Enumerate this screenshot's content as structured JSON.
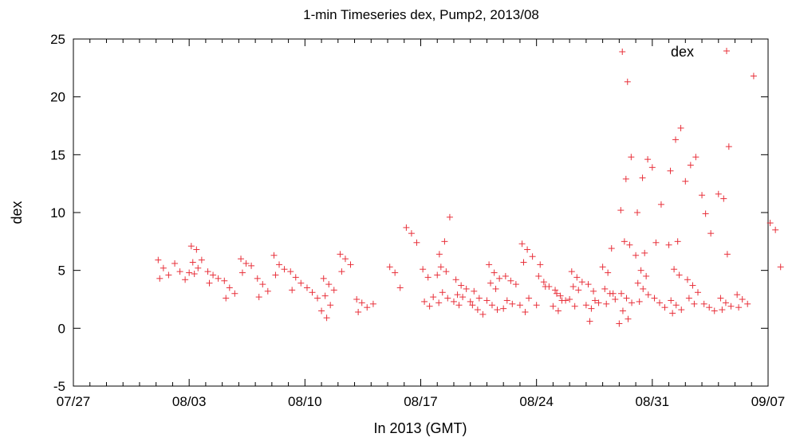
{
  "chart_data": {
    "type": "scatter",
    "title": "1-min Timeseries dex, Pump2, 2013/08",
    "xlabel": "In 2013 (GMT)",
    "ylabel": "dex",
    "x_ticks": [
      "07/27",
      "08/03",
      "08/10",
      "08/17",
      "08/24",
      "08/31",
      "09/07"
    ],
    "xlim": [
      "2013-07-27",
      "2013-09-07"
    ],
    "y_ticks": [
      "25",
      "20",
      "15",
      "10",
      "5",
      "0",
      "-5"
    ],
    "ylim": [
      -5,
      25
    ],
    "grid": false,
    "legend_position": "top-right",
    "series": [
      {
        "name": "dex",
        "marker": "plus",
        "color": "#e8303a",
        "points": [
          [
            "2013-08-01",
            5.9
          ],
          [
            "2013-08-01",
            5.2
          ],
          [
            "2013-08-01",
            4.6
          ],
          [
            "2013-08-01",
            4.3
          ],
          [
            "2013-08-02",
            5.6
          ],
          [
            "2013-08-02",
            4.9
          ],
          [
            "2013-08-02",
            4.2
          ],
          [
            "2013-08-03",
            7.1
          ],
          [
            "2013-08-03",
            6.8
          ],
          [
            "2013-08-03",
            5.9
          ],
          [
            "2013-08-03",
            5.7
          ],
          [
            "2013-08-03",
            5.2
          ],
          [
            "2013-08-03",
            4.8
          ],
          [
            "2013-08-03",
            4.7
          ],
          [
            "2013-08-04",
            4.9
          ],
          [
            "2013-08-04",
            4.6
          ],
          [
            "2013-08-04",
            4.3
          ],
          [
            "2013-08-04",
            3.9
          ],
          [
            "2013-08-05",
            4.1
          ],
          [
            "2013-08-05",
            3.5
          ],
          [
            "2013-08-05",
            3.0
          ],
          [
            "2013-08-05",
            2.6
          ],
          [
            "2013-08-06",
            6.0
          ],
          [
            "2013-08-06",
            5.6
          ],
          [
            "2013-08-06",
            5.4
          ],
          [
            "2013-08-06",
            4.8
          ],
          [
            "2013-08-07",
            4.3
          ],
          [
            "2013-08-07",
            3.8
          ],
          [
            "2013-08-07",
            3.2
          ],
          [
            "2013-08-07",
            2.7
          ],
          [
            "2013-08-08",
            6.3
          ],
          [
            "2013-08-08",
            5.5
          ],
          [
            "2013-08-08",
            5.1
          ],
          [
            "2013-08-08",
            4.6
          ],
          [
            "2013-08-09",
            4.9
          ],
          [
            "2013-08-09",
            4.4
          ],
          [
            "2013-08-09",
            3.9
          ],
          [
            "2013-08-09",
            3.3
          ],
          [
            "2013-08-10",
            3.5
          ],
          [
            "2013-08-10",
            3.1
          ],
          [
            "2013-08-10",
            2.6
          ],
          [
            "2013-08-11",
            4.3
          ],
          [
            "2013-08-11",
            3.8
          ],
          [
            "2013-08-11",
            3.3
          ],
          [
            "2013-08-11",
            2.8
          ],
          [
            "2013-08-11",
            2.0
          ],
          [
            "2013-08-11",
            1.5
          ],
          [
            "2013-08-11",
            0.9
          ],
          [
            "2013-08-12",
            6.4
          ],
          [
            "2013-08-12",
            6.0
          ],
          [
            "2013-08-12",
            5.5
          ],
          [
            "2013-08-12",
            4.9
          ],
          [
            "2013-08-13",
            2.5
          ],
          [
            "2013-08-13",
            2.2
          ],
          [
            "2013-08-13",
            1.8
          ],
          [
            "2013-08-13",
            1.4
          ],
          [
            "2013-08-14",
            2.1
          ],
          [
            "2013-08-15",
            5.3
          ],
          [
            "2013-08-15",
            4.8
          ],
          [
            "2013-08-15",
            3.5
          ],
          [
            "2013-08-16",
            8.7
          ],
          [
            "2013-08-16",
            8.2
          ],
          [
            "2013-08-16",
            7.4
          ],
          [
            "2013-08-17",
            5.1
          ],
          [
            "2013-08-17",
            4.4
          ],
          [
            "2013-08-18",
            6.4
          ],
          [
            "2013-08-18",
            7.5
          ],
          [
            "2013-08-18",
            9.6
          ],
          [
            "2013-08-18",
            5.3
          ],
          [
            "2013-08-18",
            4.9
          ],
          [
            "2013-08-18",
            4.6
          ],
          [
            "2013-08-19",
            4.2
          ],
          [
            "2013-08-19",
            3.7
          ],
          [
            "2013-08-19",
            3.4
          ],
          [
            "2013-08-19",
            2.9
          ],
          [
            "2013-08-20",
            2.0
          ],
          [
            "2013-08-20",
            1.6
          ],
          [
            "2013-08-20",
            1.2
          ],
          [
            "2013-08-21",
            5.5
          ],
          [
            "2013-08-21",
            4.8
          ],
          [
            "2013-08-21",
            4.3
          ],
          [
            "2013-08-21",
            3.9
          ],
          [
            "2013-08-21",
            3.4
          ],
          [
            "2013-08-22",
            4.5
          ],
          [
            "2013-08-22",
            4.1
          ],
          [
            "2013-08-22",
            3.8
          ],
          [
            "2013-08-23",
            7.3
          ],
          [
            "2013-08-23",
            6.8
          ],
          [
            "2013-08-23",
            6.2
          ],
          [
            "2013-08-23",
            5.7
          ],
          [
            "2013-08-24",
            4.5
          ],
          [
            "2013-08-24",
            4.0
          ],
          [
            "2013-08-24",
            3.6
          ],
          [
            "2013-08-25",
            3.3
          ],
          [
            "2013-08-25",
            2.8
          ],
          [
            "2013-08-25",
            2.4
          ],
          [
            "2013-08-26",
            4.9
          ],
          [
            "2013-08-26",
            4.4
          ],
          [
            "2013-08-26",
            4.0
          ],
          [
            "2013-08-26",
            3.6
          ],
          [
            "2013-08-27",
            3.8
          ],
          [
            "2013-08-27",
            3.2
          ],
          [
            "2013-08-27",
            2.2
          ],
          [
            "2013-08-27",
            0.6
          ],
          [
            "2013-08-28",
            3.4
          ],
          [
            "2013-08-28",
            3.0
          ],
          [
            "2013-08-28",
            2.5
          ],
          [
            "2013-08-28",
            2.1
          ],
          [
            "2013-08-29",
            3.0
          ],
          [
            "2013-08-29",
            2.6
          ],
          [
            "2013-08-29",
            2.2
          ],
          [
            "2013-08-29",
            1.5
          ],
          [
            "2013-08-29",
            0.8
          ],
          [
            "2013-08-29",
            0.4
          ],
          [
            "2013-08-30",
            3.9
          ],
          [
            "2013-08-30",
            3.4
          ],
          [
            "2013-08-30",
            2.9
          ],
          [
            "2013-08-30",
            2.3
          ],
          [
            "2013-08-31",
            2.6
          ],
          [
            "2013-08-31",
            2.2
          ],
          [
            "2013-08-31",
            1.8
          ],
          [
            "2013-09-01",
            2.4
          ],
          [
            "2013-09-01",
            2.0
          ],
          [
            "2013-09-01",
            1.6
          ],
          [
            "2013-09-01",
            1.3
          ],
          [
            "2013-09-02",
            4.2
          ],
          [
            "2013-09-02",
            3.7
          ],
          [
            "2013-09-02",
            3.1
          ],
          [
            "2013-09-02",
            2.6
          ],
          [
            "2013-09-02",
            2.1
          ],
          [
            "2013-09-03",
            2.1
          ],
          [
            "2013-09-03",
            1.8
          ],
          [
            "2013-09-03",
            1.5
          ],
          [
            "2013-09-04",
            2.6
          ],
          [
            "2013-09-04",
            2.2
          ],
          [
            "2013-09-04",
            1.9
          ],
          [
            "2013-09-04",
            1.6
          ],
          [
            "2013-09-05",
            2.9
          ],
          [
            "2013-09-05",
            2.5
          ],
          [
            "2013-09-05",
            2.1
          ],
          [
            "2013-09-05",
            1.8
          ],
          [
            "2013-08-17",
            2.7
          ],
          [
            "2013-08-17",
            2.3
          ],
          [
            "2013-08-17",
            1.9
          ],
          [
            "2013-08-18",
            3.1
          ],
          [
            "2013-08-18",
            2.6
          ],
          [
            "2013-08-18",
            2.2
          ],
          [
            "2013-08-19",
            2.7
          ],
          [
            "2013-08-19",
            2.3
          ],
          [
            "2013-08-19",
            2.0
          ],
          [
            "2013-08-20",
            3.2
          ],
          [
            "2013-08-20",
            2.6
          ],
          [
            "2013-08-20",
            2.3
          ],
          [
            "2013-08-21",
            2.4
          ],
          [
            "2013-08-21",
            2.0
          ],
          [
            "2013-08-21",
            1.6
          ],
          [
            "2013-08-22",
            2.4
          ],
          [
            "2013-08-22",
            2.1
          ],
          [
            "2013-08-22",
            1.7
          ],
          [
            "2013-08-23",
            2.6
          ],
          [
            "2013-08-23",
            2.0
          ],
          [
            "2013-08-23",
            1.4
          ],
          [
            "2013-08-24",
            5.5
          ],
          [
            "2013-08-24",
            3.6
          ],
          [
            "2013-08-24",
            2.0
          ],
          [
            "2013-08-25",
            3.0
          ],
          [
            "2013-08-25",
            2.4
          ],
          [
            "2013-08-25",
            1.9
          ],
          [
            "2013-08-25",
            1.5
          ],
          [
            "2013-08-26",
            3.3
          ],
          [
            "2013-08-26",
            2.5
          ],
          [
            "2013-08-26",
            1.9
          ],
          [
            "2013-08-27",
            2.4
          ],
          [
            "2013-08-27",
            2.0
          ],
          [
            "2013-08-27",
            1.7
          ],
          [
            "2013-08-28",
            6.9
          ],
          [
            "2013-08-28",
            5.3
          ],
          [
            "2013-08-28",
            4.8
          ],
          [
            "2013-08-28",
            3.0
          ],
          [
            "2013-08-29",
            7.5
          ],
          [
            "2013-08-29",
            7.2
          ],
          [
            "2013-08-29",
            10.2
          ],
          [
            "2013-08-29",
            12.9
          ],
          [
            "2013-08-29",
            14.8
          ],
          [
            "2013-08-29",
            23.9
          ],
          [
            "2013-08-29",
            21.3
          ],
          [
            "2013-08-30",
            6.5
          ],
          [
            "2013-08-30",
            6.3
          ],
          [
            "2013-08-30",
            5.0
          ],
          [
            "2013-08-30",
            4.5
          ],
          [
            "2013-08-30",
            10.0
          ],
          [
            "2013-08-30",
            13.0
          ],
          [
            "2013-08-30",
            14.6
          ],
          [
            "2013-08-31",
            7.4
          ],
          [
            "2013-08-31",
            10.7
          ],
          [
            "2013-08-31",
            13.9
          ],
          [
            "2013-09-01",
            7.5
          ],
          [
            "2013-09-01",
            7.2
          ],
          [
            "2013-09-01",
            5.1
          ],
          [
            "2013-09-01",
            4.6
          ],
          [
            "2013-09-01",
            13.6
          ],
          [
            "2013-09-01",
            16.3
          ],
          [
            "2013-09-01",
            17.3
          ],
          [
            "2013-09-02",
            12.7
          ],
          [
            "2013-09-02",
            14.1
          ],
          [
            "2013-09-02",
            14.8
          ],
          [
            "2013-09-03",
            9.9
          ],
          [
            "2013-09-03",
            8.2
          ],
          [
            "2013-09-03",
            11.5
          ],
          [
            "2013-09-04",
            6.4
          ],
          [
            "2013-09-04",
            11.6
          ],
          [
            "2013-09-04",
            11.2
          ],
          [
            "2013-09-04",
            15.7
          ],
          [
            "2013-09-06",
            21.8
          ],
          [
            "2013-09-07",
            9.1
          ],
          [
            "2013-09-07",
            8.5
          ],
          [
            "2013-09-07",
            5.3
          ]
        ]
      }
    ]
  }
}
